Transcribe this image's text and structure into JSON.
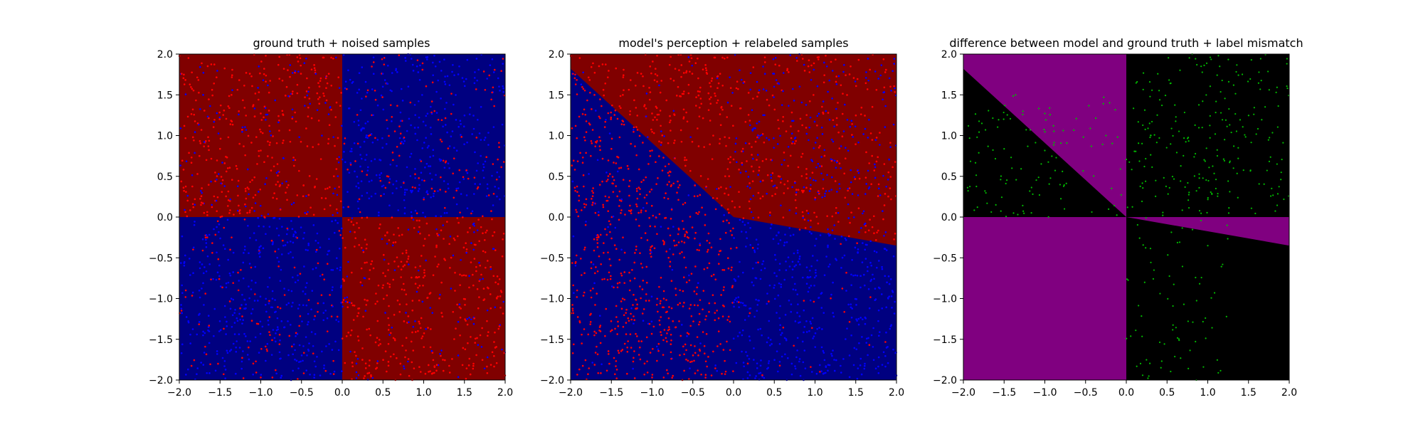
{
  "chart_data": [
    {
      "type": "scatter",
      "title": "ground truth + noised samples",
      "xlim": [
        -2.0,
        2.0
      ],
      "ylim": [
        -2.0,
        2.0
      ],
      "xticks": [
        "−2.0",
        "−1.5",
        "−1.0",
        "−0.5",
        "0.0",
        "0.5",
        "1.0",
        "1.5",
        "2.0"
      ],
      "yticks": [
        "−2.0",
        "−1.5",
        "−1.0",
        "−0.5",
        "0.0",
        "0.5",
        "1.0",
        "1.5",
        "2.0"
      ],
      "background": "sign(x*y) regions: red where x*y<0, blue where x*y>0",
      "regions": [
        {
          "quadrant": "top-left",
          "color": "#800000"
        },
        {
          "quadrant": "top-right",
          "color": "#000080"
        },
        {
          "quadrant": "bottom-left",
          "color": "#000080"
        },
        {
          "quadrant": "bottom-right",
          "color": "#800000"
        }
      ],
      "points": {
        "count_approx": 2000,
        "colors": [
          "#ff0000",
          "#0000ff"
        ],
        "distribution": "uniform in [-2,2]x[-2,2], labels mostly follow ground truth with noise"
      }
    },
    {
      "type": "scatter",
      "title": "model's perception + relabeled samples",
      "xlim": [
        -2.0,
        2.0
      ],
      "ylim": [
        -2.0,
        2.0
      ],
      "xticks": [
        "−2.0",
        "−1.5",
        "−1.0",
        "−0.5",
        "0.0",
        "0.5",
        "1.0",
        "1.5",
        "2.0"
      ],
      "yticks": [
        "−2.0",
        "−1.5",
        "−1.0",
        "−0.5",
        "0.0",
        "0.5",
        "1.0",
        "1.5",
        "2.0"
      ],
      "boundary": [
        [
          -2.0,
          1.82
        ],
        [
          0.0,
          0.0
        ],
        [
          2.0,
          -0.35
        ]
      ],
      "regions": [
        {
          "side": "above boundary",
          "color": "#800000"
        },
        {
          "side": "below boundary",
          "color": "#000080"
        }
      ],
      "points": {
        "count_approx": 2000,
        "colors": [
          "#ff0000",
          "#0000ff"
        ]
      }
    },
    {
      "type": "scatter",
      "title": "difference between model and ground truth + label mismatch",
      "xlim": [
        -2.0,
        2.0
      ],
      "ylim": [
        -2.0,
        2.0
      ],
      "xticks": [
        "−2.0",
        "−1.5",
        "−1.0",
        "−0.5",
        "0.0",
        "0.5",
        "1.0",
        "1.5",
        "2.0"
      ],
      "yticks": [
        "−2.0",
        "−1.5",
        "−1.0",
        "−0.5",
        "0.0",
        "0.5",
        "1.0",
        "1.5",
        "2.0"
      ],
      "colors": {
        "agree": "#000000",
        "disagree": "#800080",
        "mismatch_points": "#00bb00"
      },
      "points": {
        "count_approx": 450,
        "color": "#00bb00"
      }
    }
  ]
}
